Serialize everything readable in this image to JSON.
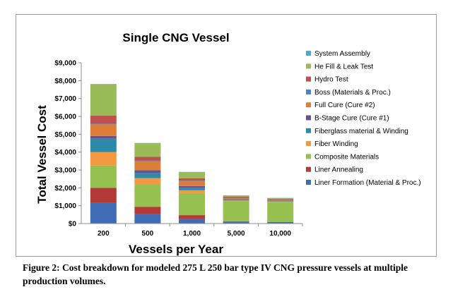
{
  "chart_data": {
    "type": "bar",
    "stacked": true,
    "title": "Single CNG Vessel",
    "xlabel": "Vessels per Year",
    "ylabel": "Total Vessel Cost",
    "ylim": [
      0,
      9000
    ],
    "yticks": [
      0,
      1000,
      2000,
      3000,
      4000,
      5000,
      6000,
      7000,
      8000,
      9000
    ],
    "ytick_labels": [
      "$0",
      "$1,000",
      "$2,000",
      "$3,000",
      "$4,000",
      "$5,000",
      "$6,000",
      "$7,000",
      "$8,000",
      "$9,000"
    ],
    "grid": false,
    "legend_position": "right",
    "categories": [
      "200",
      "500",
      "1,000",
      "5,000",
      "10,000"
    ],
    "series": [
      {
        "name": "Liner Formation (Material & Proc.)",
        "color": "#3f6cb5",
        "values": [
          1150,
          520,
          250,
          110,
          80
        ]
      },
      {
        "name": "Liner Annealing",
        "color": "#b43a38",
        "values": [
          850,
          420,
          220,
          20,
          10
        ]
      },
      {
        "name": "Composite Materials",
        "color": "#96c04f",
        "values": [
          1250,
          1250,
          1230,
          1130,
          1120
        ]
      },
      {
        "name": "Fiber Winding",
        "color": "#f39a41",
        "values": [
          750,
          350,
          160,
          30,
          20
        ]
      },
      {
        "name": "Fiberglass material & Winding",
        "color": "#2f8aa9",
        "values": [
          750,
          300,
          140,
          40,
          30
        ]
      },
      {
        "name": "B-Stage Cure (Cure #1)",
        "color": "#6a4f95",
        "values": [
          150,
          150,
          100,
          30,
          20
        ]
      },
      {
        "name": "Full Cure (Cure #2)",
        "color": "#dc7e35",
        "values": [
          650,
          500,
          280,
          80,
          60
        ]
      },
      {
        "name": "Boss (Materials & Proc.)",
        "color": "#4f7ec2",
        "values": [
          50,
          40,
          30,
          20,
          20
        ]
      },
      {
        "name": "Hydro Test",
        "color": "#c0504d",
        "values": [
          450,
          200,
          120,
          40,
          25
        ]
      },
      {
        "name": "He Fill & Leak Test",
        "color": "#9bbb59",
        "values": [
          1750,
          770,
          350,
          70,
          45
        ]
      },
      {
        "name": "System Assembly",
        "color": "#4bacc6",
        "values": [
          10,
          10,
          10,
          10,
          10
        ]
      }
    ]
  },
  "caption": "Figure 2: Cost breakdown for modeled 275 L 250 bar type IV CNG pressure vessels at multiple production volumes."
}
